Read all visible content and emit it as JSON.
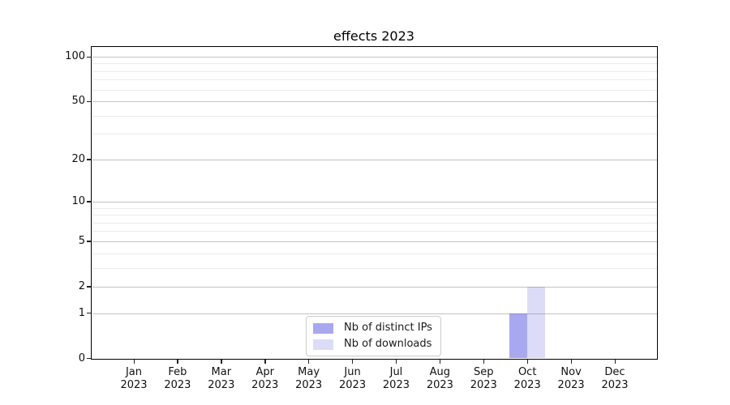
{
  "title": "effects 2023",
  "chart_data": {
    "type": "bar",
    "title": "effects 2023",
    "categories": [
      {
        "month": "Jan",
        "year": "2023"
      },
      {
        "month": "Feb",
        "year": "2023"
      },
      {
        "month": "Mar",
        "year": "2023"
      },
      {
        "month": "Apr",
        "year": "2023"
      },
      {
        "month": "May",
        "year": "2023"
      },
      {
        "month": "Jun",
        "year": "2023"
      },
      {
        "month": "Jul",
        "year": "2023"
      },
      {
        "month": "Aug",
        "year": "2023"
      },
      {
        "month": "Sep",
        "year": "2023"
      },
      {
        "month": "Oct",
        "year": "2023"
      },
      {
        "month": "Nov",
        "year": "2023"
      },
      {
        "month": "Dec",
        "year": "2023"
      }
    ],
    "series": [
      {
        "name": "Nb of distinct IPs",
        "color": "#a8a8f1",
        "values": [
          0,
          0,
          0,
          0,
          0,
          0,
          0,
          0,
          0,
          1,
          0,
          0
        ]
      },
      {
        "name": "Nb of downloads",
        "color": "#dcdcf9",
        "values": [
          0,
          0,
          0,
          0,
          0,
          0,
          0,
          0,
          0,
          2,
          0,
          0
        ]
      }
    ],
    "xlabel": "",
    "ylabel": "",
    "yscale": "log1p",
    "ylim": [
      0,
      116
    ],
    "y_major_ticks": [
      0,
      1,
      2,
      5,
      10,
      20,
      50,
      100
    ],
    "y_minor_ticks": [
      3,
      4,
      6,
      7,
      8,
      9,
      30,
      40,
      60,
      70,
      80,
      90
    ],
    "grid": true,
    "grid_over_bars": true,
    "legend_position": "lower center"
  },
  "colors": {
    "bar_distinct_ips": "#a8a8f1",
    "bar_downloads": "#dcdcf9",
    "grid_major": "#c9c9c9",
    "grid_minor": "#ececec",
    "spine": "#000000",
    "text": "#1a1a1a",
    "background": "#ffffff"
  }
}
